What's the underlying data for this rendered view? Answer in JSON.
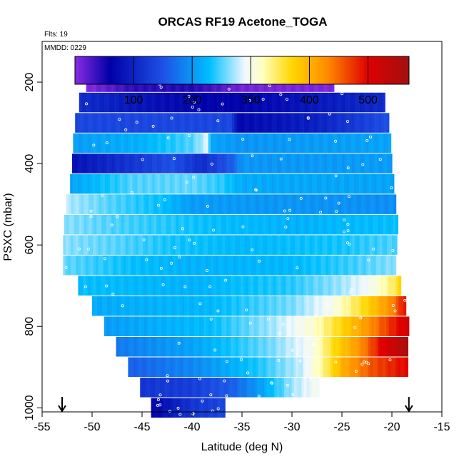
{
  "chart_data": {
    "type": "heatmap",
    "title": "ORCAS RF19 Acetone_TOGA",
    "note_flights": "Flts: 19",
    "note_date": "MMDD: 0229",
    "xlabel": "Latitude (deg N)",
    "ylabel": "PSXC (mbar)",
    "xlim": [
      -55,
      -15
    ],
    "ylim": [
      1010,
      100
    ],
    "x_ticks": [
      -55,
      -50,
      -45,
      -40,
      -35,
      -30,
      -25,
      -20,
      -15
    ],
    "y_ticks": [
      200,
      400,
      600,
      800,
      1000
    ],
    "colorbar": {
      "range": [
        0,
        570
      ],
      "ticks": [
        100,
        200,
        300,
        400,
        500
      ],
      "colors": [
        "#8a2be2",
        "#0000a8",
        "#1e50e6",
        "#00bfff",
        "#f0f8ff",
        "#ffffc0",
        "#ffd700",
        "#ff8c00",
        "#e00000",
        "#a01010"
      ],
      "color_stops": [
        0,
        60,
        150,
        230,
        290,
        320,
        370,
        430,
        500,
        570
      ]
    },
    "markers": [
      {
        "name": "arrow-left",
        "lat": -53.0
      },
      {
        "name": "arrow-right",
        "lat": -18.3
      }
    ],
    "rows": [
      {
        "p": 200,
        "lat0": -50.6,
        "lat1": -25.8,
        "knots": [
          [
            -50.6,
            0
          ],
          [
            -46,
            40
          ],
          [
            -40,
            45
          ],
          [
            -35,
            10
          ],
          [
            -25.8,
            5
          ]
        ]
      },
      {
        "p": 250,
        "lat0": -51.3,
        "lat1": -20.7,
        "knots": [
          [
            -51.3,
            110
          ],
          [
            -44,
            80
          ],
          [
            -37,
            60
          ],
          [
            -30,
            80
          ],
          [
            -20.7,
            110
          ]
        ]
      },
      {
        "p": 300,
        "lat0": -51.7,
        "lat1": -20.3,
        "knots": [
          [
            -51.7,
            140
          ],
          [
            -36,
            140
          ],
          [
            -35.5,
            70
          ],
          [
            -28,
            95
          ],
          [
            -20.3,
            150
          ]
        ]
      },
      {
        "p": 350,
        "lat0": -51.9,
        "lat1": -20.1,
        "knots": [
          [
            -51.9,
            205
          ],
          [
            -45,
            220
          ],
          [
            -40,
            250
          ],
          [
            -38.5,
            285
          ],
          [
            -38,
            210
          ],
          [
            -35,
            200
          ],
          [
            -20.1,
            210
          ]
        ]
      },
      {
        "p": 400,
        "lat0": -52.0,
        "lat1": -20.0,
        "knots": [
          [
            -52.0,
            80
          ],
          [
            -46,
            120
          ],
          [
            -42,
            150
          ],
          [
            -39,
            110
          ],
          [
            -36,
            160
          ],
          [
            -35,
            200
          ],
          [
            -20.0,
            205
          ]
        ]
      },
      {
        "p": 450,
        "lat0": -52.2,
        "lat1": -19.8,
        "knots": [
          [
            -52.2,
            210
          ],
          [
            -46,
            250
          ],
          [
            -40,
            255
          ],
          [
            -37,
            240
          ],
          [
            -35,
            215
          ],
          [
            -19.8,
            210
          ]
        ]
      },
      {
        "p": 500,
        "lat0": -52.6,
        "lat1": -19.6,
        "knots": [
          [
            -52.6,
            275
          ],
          [
            -48,
            250
          ],
          [
            -43,
            230
          ],
          [
            -40,
            205
          ],
          [
            -19.6,
            195
          ]
        ]
      },
      {
        "p": 550,
        "lat0": -52.8,
        "lat1": -19.4,
        "knots": [
          [
            -52.8,
            265
          ],
          [
            -48,
            250
          ],
          [
            -43,
            240
          ],
          [
            -38,
            230
          ],
          [
            -30,
            220
          ],
          [
            -19.4,
            230
          ]
        ]
      },
      {
        "p": 600,
        "lat0": -52.9,
        "lat1": -19.5,
        "knots": [
          [
            -52.9,
            265
          ],
          [
            -47,
            250
          ],
          [
            -42,
            235
          ],
          [
            -35,
            225
          ],
          [
            -25,
            235
          ],
          [
            -19.5,
            250
          ]
        ]
      },
      {
        "p": 650,
        "lat0": -52.9,
        "lat1": -19.6,
        "knots": [
          [
            -52.9,
            255
          ],
          [
            -46,
            230
          ],
          [
            -40,
            220
          ],
          [
            -30,
            225
          ],
          [
            -24,
            245
          ],
          [
            -19.6,
            265
          ]
        ]
      },
      {
        "p": 700,
        "lat0": -51.4,
        "lat1": -19.1,
        "knots": [
          [
            -51.4,
            230
          ],
          [
            -40,
            220
          ],
          [
            -30,
            240
          ],
          [
            -25,
            270
          ],
          [
            -22,
            300
          ],
          [
            -20,
            340
          ],
          [
            -19.1,
            370
          ]
        ]
      },
      {
        "p": 750,
        "lat0": -50.0,
        "lat1": -18.6,
        "knots": [
          [
            -50.0,
            215
          ],
          [
            -38,
            225
          ],
          [
            -30,
            260
          ],
          [
            -26,
            300
          ],
          [
            -23,
            360
          ],
          [
            -20,
            430
          ],
          [
            -18.6,
            500
          ]
        ]
      },
      {
        "p": 800,
        "lat0": -48.8,
        "lat1": -18.3,
        "knots": [
          [
            -48.8,
            205
          ],
          [
            -38,
            230
          ],
          [
            -32,
            270
          ],
          [
            -28,
            310
          ],
          [
            -25,
            370
          ],
          [
            -22,
            430
          ],
          [
            -20,
            480
          ],
          [
            -18.3,
            520
          ]
        ]
      },
      {
        "p": 850,
        "lat0": -47.6,
        "lat1": -18.4,
        "knots": [
          [
            -47.6,
            180
          ],
          [
            -40,
            210
          ],
          [
            -32,
            260
          ],
          [
            -28,
            300
          ],
          [
            -26,
            360
          ],
          [
            -23,
            430
          ],
          [
            -21,
            500
          ],
          [
            -18.4,
            560
          ]
        ]
      },
      {
        "p": 900,
        "lat0": -46.4,
        "lat1": -18.4,
        "knots": [
          [
            -46.4,
            160
          ],
          [
            -40,
            190
          ],
          [
            -33,
            240
          ],
          [
            -29,
            280
          ],
          [
            -27,
            330
          ],
          [
            -25,
            400
          ],
          [
            -22,
            460
          ],
          [
            -18.4,
            500
          ]
        ]
      },
      {
        "p": 950,
        "lat0": -45.2,
        "lat1": -27.3,
        "knots": [
          [
            -45.2,
            120
          ],
          [
            -40,
            130
          ],
          [
            -36,
            160
          ],
          [
            -33,
            210
          ],
          [
            -30,
            270
          ],
          [
            -27.3,
            300
          ]
        ]
      },
      {
        "p": 1000,
        "lat0": -44.1,
        "lat1": -36.7,
        "knots": [
          [
            -44.1,
            60
          ],
          [
            -40,
            120
          ],
          [
            -36.7,
            140
          ]
        ]
      }
    ]
  }
}
